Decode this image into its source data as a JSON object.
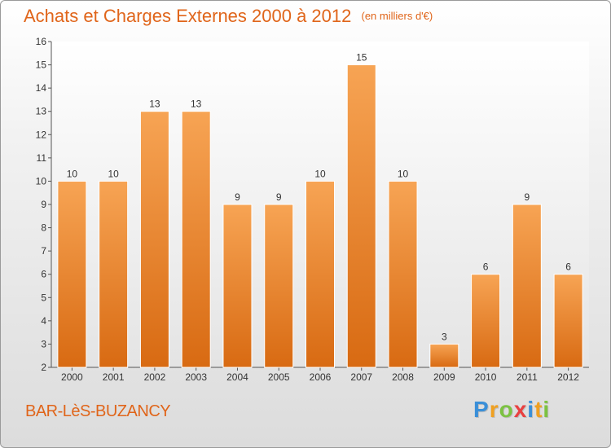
{
  "header": {
    "title": "Achats et Charges Externes 2000 à 2012",
    "subtitle": "(en milliers d'€)"
  },
  "footer": {
    "place": "BAR-LèS-BUZANCY",
    "logo_letters": [
      {
        "ch": "P",
        "color": "#3a8fd8"
      },
      {
        "ch": "r",
        "color": "#f0a020"
      },
      {
        "ch": "o",
        "color": "#7cc242"
      },
      {
        "ch": "x",
        "color": "#e94040"
      },
      {
        "ch": "i",
        "color": "#3a8fd8"
      },
      {
        "ch": "t",
        "color": "#f0a020"
      },
      {
        "ch": "i",
        "color": "#7cc242"
      }
    ]
  },
  "chart_data": {
    "type": "bar",
    "categories": [
      "2000",
      "2001",
      "2002",
      "2003",
      "2004",
      "2005",
      "2006",
      "2007",
      "2008",
      "2009",
      "2010",
      "2011",
      "2012"
    ],
    "values": [
      10,
      10,
      13,
      13,
      9,
      9,
      10,
      15,
      10,
      3,
      6,
      9,
      6
    ],
    "ylim": [
      2,
      16
    ],
    "yticks": [
      "2",
      "3",
      "4",
      "5",
      "6",
      "7",
      "8",
      "9",
      "10",
      "11",
      "12",
      "13",
      "14",
      "15",
      "16"
    ],
    "grid": false,
    "bar_color": "#f08a2c",
    "bar_color_light": "#f5a85a",
    "text_color": "#333333"
  }
}
